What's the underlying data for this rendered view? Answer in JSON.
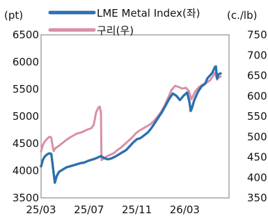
{
  "chart_data": {
    "type": "line",
    "title": "",
    "left_axis": {
      "unit_label": "(pt)",
      "ylim": [
        3500,
        6500
      ],
      "ticks": [
        6500,
        6000,
        5500,
        5000,
        4500,
        4000,
        3500
      ]
    },
    "right_axis": {
      "unit_label": "(c./lb)",
      "ylim": [
        350,
        750
      ],
      "ticks": [
        750,
        700,
        650,
        600,
        550,
        500,
        450,
        400,
        350
      ]
    },
    "x_ticks": [
      {
        "label": "25/03",
        "t": 0
      },
      {
        "label": "25/07",
        "t": 4
      },
      {
        "label": "25/11",
        "t": 8
      },
      {
        "label": "26/03",
        "t": 12
      }
    ],
    "xlim": [
      0,
      15.7
    ],
    "grid": false,
    "legend_position": "top",
    "series": [
      {
        "name": "LME Metal Index(좌)",
        "axis": "left",
        "color": "#2e6fae",
        "points": [
          [
            0.0,
            4080
          ],
          [
            0.15,
            4200
          ],
          [
            0.3,
            4260
          ],
          [
            0.5,
            4300
          ],
          [
            0.7,
            4320
          ],
          [
            0.85,
            4310
          ],
          [
            0.95,
            4150
          ],
          [
            1.05,
            3950
          ],
          [
            1.15,
            3780
          ],
          [
            1.3,
            3900
          ],
          [
            1.5,
            3980
          ],
          [
            1.8,
            4020
          ],
          [
            2.1,
            4060
          ],
          [
            2.4,
            4080
          ],
          [
            2.7,
            4100
          ],
          [
            3.0,
            4120
          ],
          [
            3.3,
            4140
          ],
          [
            3.6,
            4150
          ],
          [
            3.9,
            4180
          ],
          [
            4.2,
            4200
          ],
          [
            4.5,
            4220
          ],
          [
            4.8,
            4250
          ],
          [
            5.0,
            4270
          ],
          [
            5.3,
            4230
          ],
          [
            5.6,
            4210
          ],
          [
            5.9,
            4230
          ],
          [
            6.2,
            4260
          ],
          [
            6.5,
            4300
          ],
          [
            6.8,
            4340
          ],
          [
            7.1,
            4380
          ],
          [
            7.4,
            4450
          ],
          [
            7.7,
            4520
          ],
          [
            8.0,
            4580
          ],
          [
            8.3,
            4600
          ],
          [
            8.6,
            4650
          ],
          [
            8.9,
            4700
          ],
          [
            9.2,
            4780
          ],
          [
            9.5,
            4880
          ],
          [
            9.8,
            4980
          ],
          [
            10.1,
            5080
          ],
          [
            10.4,
            5200
          ],
          [
            10.7,
            5320
          ],
          [
            11.0,
            5420
          ],
          [
            11.3,
            5380
          ],
          [
            11.6,
            5300
          ],
          [
            11.9,
            5380
          ],
          [
            12.2,
            5440
          ],
          [
            12.4,
            5260
          ],
          [
            12.5,
            5100
          ],
          [
            12.6,
            5150
          ],
          [
            12.8,
            5300
          ],
          [
            13.1,
            5450
          ],
          [
            13.4,
            5550
          ],
          [
            13.7,
            5600
          ],
          [
            13.9,
            5700
          ],
          [
            14.1,
            5750
          ],
          [
            14.3,
            5800
          ],
          [
            14.5,
            5900
          ],
          [
            14.6,
            5920
          ],
          [
            14.7,
            5700
          ],
          [
            14.85,
            5780
          ],
          [
            15.0,
            5790
          ]
        ]
      },
      {
        "name": "구리(우)",
        "axis": "right",
        "color": "#d88fa6",
        "points": [
          [
            0.0,
            464
          ],
          [
            0.15,
            480
          ],
          [
            0.3,
            488
          ],
          [
            0.5,
            495
          ],
          [
            0.7,
            500
          ],
          [
            0.85,
            498
          ],
          [
            0.95,
            480
          ],
          [
            1.05,
            465
          ],
          [
            1.2,
            472
          ],
          [
            1.5,
            478
          ],
          [
            1.8,
            485
          ],
          [
            2.1,
            492
          ],
          [
            2.4,
            498
          ],
          [
            2.7,
            503
          ],
          [
            3.0,
            508
          ],
          [
            3.3,
            510
          ],
          [
            3.6,
            514
          ],
          [
            3.9,
            518
          ],
          [
            4.2,
            521
          ],
          [
            4.4,
            530
          ],
          [
            4.6,
            560
          ],
          [
            4.8,
            572
          ],
          [
            4.9,
            574
          ],
          [
            5.0,
            560
          ],
          [
            5.05,
            443
          ],
          [
            5.2,
            446
          ],
          [
            5.5,
            452
          ],
          [
            5.8,
            456
          ],
          [
            6.1,
            460
          ],
          [
            6.4,
            468
          ],
          [
            6.7,
            474
          ],
          [
            7.0,
            482
          ],
          [
            7.3,
            490
          ],
          [
            7.6,
            498
          ],
          [
            7.9,
            508
          ],
          [
            8.2,
            515
          ],
          [
            8.5,
            520
          ],
          [
            8.8,
            525
          ],
          [
            9.1,
            530
          ],
          [
            9.4,
            538
          ],
          [
            9.7,
            548
          ],
          [
            10.0,
            560
          ],
          [
            10.3,
            575
          ],
          [
            10.6,
            595
          ],
          [
            10.9,
            615
          ],
          [
            11.2,
            625
          ],
          [
            11.5,
            622
          ],
          [
            11.8,
            618
          ],
          [
            12.1,
            620
          ],
          [
            12.35,
            612
          ],
          [
            12.55,
            592
          ],
          [
            12.7,
            600
          ],
          [
            12.9,
            612
          ],
          [
            13.2,
            622
          ],
          [
            13.5,
            628
          ],
          [
            13.8,
            632
          ],
          [
            14.1,
            638
          ],
          [
            14.4,
            650
          ],
          [
            14.55,
            658
          ],
          [
            14.7,
            640
          ],
          [
            14.85,
            645
          ],
          [
            15.0,
            648
          ]
        ]
      }
    ]
  }
}
